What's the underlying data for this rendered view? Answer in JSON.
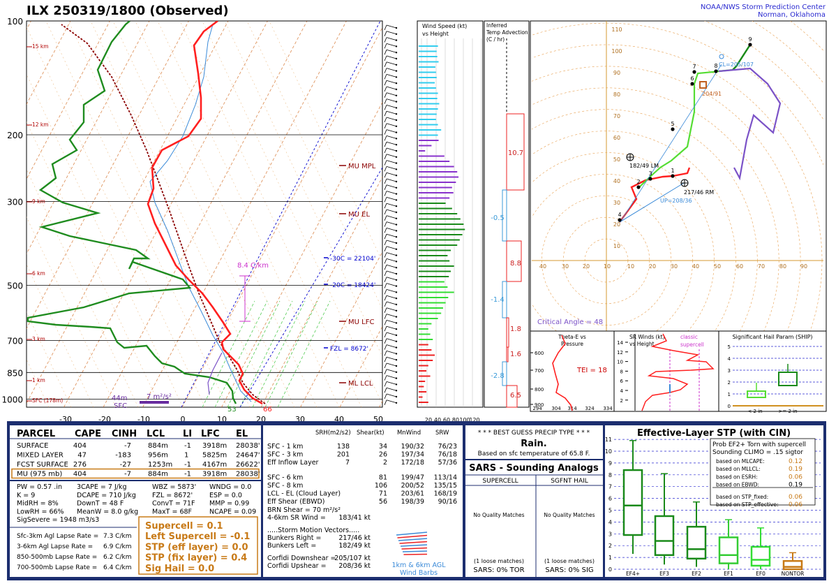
{
  "header": {
    "station_title": "ILX   250319/1800  (Observed)",
    "center_line1": "NOAA/NWS Storm Prediction Center",
    "center_line2": "Norman, Oklahoma"
  },
  "colors": {
    "temp": "#ff2020",
    "dewpoint": "#1f8c1f",
    "parcel": "#8b0000",
    "isotherm": "#d2691e",
    "blue": "#0000cd",
    "navy": "#1c2e6f",
    "violet": "#7b52c7",
    "magenta": "#cc33cc",
    "orange": "#c87a17"
  },
  "chart_data": [
    {
      "type": "line",
      "name": "skewt",
      "pressure_levels": [
        "100",
        "200",
        "300",
        "500",
        "700",
        "850",
        "1000"
      ],
      "x_ticks": [
        "-30",
        "-20",
        "-10",
        "0",
        "10",
        "20",
        "30",
        "40",
        "50"
      ],
      "height_labels": [
        "15 km",
        "12 km",
        "9 km",
        "6 km",
        "3 km",
        "1 km",
        "SFC (178m)"
      ],
      "temperature": [
        [
          1000,
          18
        ],
        [
          975,
          15
        ],
        [
          950,
          13
        ],
        [
          925,
          12
        ],
        [
          900,
          11.5
        ],
        [
          850,
          12
        ],
        [
          800,
          8
        ],
        [
          750,
          4
        ],
        [
          700,
          1
        ],
        [
          650,
          -3
        ],
        [
          600,
          -7
        ],
        [
          550,
          -12
        ],
        [
          500,
          -17
        ],
        [
          450,
          -23
        ],
        [
          400,
          -30
        ],
        [
          350,
          -37
        ],
        [
          300,
          -45
        ],
        [
          250,
          -52
        ],
        [
          200,
          -56
        ],
        [
          150,
          -58
        ],
        [
          100,
          -64
        ]
      ],
      "dewpoint": [
        [
          1000,
          13
        ],
        [
          975,
          11
        ],
        [
          950,
          9
        ],
        [
          925,
          7
        ],
        [
          900,
          3
        ],
        [
          850,
          -2
        ],
        [
          800,
          -15
        ],
        [
          750,
          -18
        ],
        [
          700,
          -22
        ],
        [
          650,
          -30
        ],
        [
          600,
          -38
        ],
        [
          550,
          -42
        ],
        [
          500,
          -35
        ],
        [
          450,
          -45
        ],
        [
          400,
          -55
        ],
        [
          350,
          -60
        ],
        [
          300,
          -65
        ],
        [
          250,
          -70
        ],
        [
          200,
          -75
        ],
        [
          150,
          -78
        ],
        [
          100,
          -85
        ]
      ],
      "annotations": {
        "mu_mpl": "MU MPL",
        "mu_el": "MU EL",
        "mu_lfc": "MU LFC",
        "ml_lcl": "ML LCL",
        "m30c": "-30C = 22104'",
        "m20c": "-20C = 18424'",
        "fzl": "FZL = 8672'",
        "lapse": "8.4 C/km",
        "sfc_temp": "66",
        "sfc_dew": "53",
        "srh_depth": "44m",
        "sfc": "SFC",
        "scale": "7 m²/s²"
      }
    },
    {
      "type": "bar",
      "name": "wind_speed_height",
      "title": "Wind Speed (kt)\nvs Height",
      "ticks": [
        "20",
        "40",
        "60",
        "80",
        "100",
        "120"
      ]
    },
    {
      "type": "bar",
      "name": "temp_advection",
      "title": "Inferred\nTemp Advection\n(C / hr)",
      "values": [
        "10.7",
        "-0.5",
        "8.8",
        "-1.4",
        "1.8",
        "1.6",
        "-2.8",
        "6.5"
      ]
    },
    {
      "type": "line",
      "name": "hodograph",
      "y_ticks": [
        "110",
        "100",
        "90",
        "80",
        "70",
        "60",
        "50",
        "40",
        "30",
        "20",
        "10"
      ],
      "x_ticks": [
        "40",
        "30",
        "20",
        "10",
        "10",
        "20",
        "30",
        "40",
        "50",
        "60",
        "70",
        "80",
        "90"
      ],
      "labels": {
        "cl": "CL=205/107",
        "sm": "204/91",
        "lm": "182/49 LM",
        "rm": "217/46 RM",
        "up": "UP=208/36",
        "critical_angle": "Critical Angle = 48"
      },
      "points": [
        "1",
        "2",
        "3",
        "4",
        "5",
        "6",
        "7",
        "8",
        "9"
      ]
    },
    {
      "type": "line",
      "name": "theta_e",
      "title": "Theta-E vs\nPressure",
      "y_ticks": [
        "600",
        "700",
        "800",
        "900"
      ],
      "x_ticks": [
        "294",
        "304",
        "314",
        "324",
        "334"
      ],
      "tei": "TEI = 18"
    },
    {
      "type": "line",
      "name": "sr_winds",
      "title": "SR Winds (kt)\nvs Height",
      "y_ticks": [
        "14",
        "12",
        "10",
        "8",
        "6",
        "4",
        "2"
      ],
      "classic": "classic\nsupercell"
    },
    {
      "type": "bar",
      "name": "ship",
      "title": "Significant Hail Param (SHIP)",
      "y_ticks": [
        "5",
        "4",
        "3",
        "2",
        "1",
        "0"
      ],
      "x_labels": [
        "< 2 in",
        ">= 2 in"
      ]
    }
  ],
  "parcel_table": {
    "headers": [
      "PARCEL",
      "CAPE",
      "CINH",
      "LCL",
      "LI",
      "LFC",
      "EL"
    ],
    "rows": [
      [
        "SURFACE",
        "404",
        "-7",
        "884m",
        "-1",
        "3918m",
        "28038'"
      ],
      [
        "MIXED LAYER",
        "47",
        "-183",
        "956m",
        "1",
        "5825m",
        "24647'"
      ],
      [
        "FCST SURFACE",
        "276",
        "-27",
        "1253m",
        "-1",
        "4167m",
        "26622'"
      ],
      [
        "MU   (975 mb)",
        "404",
        "-7",
        "884m",
        "-1",
        "3918m",
        "28038'"
      ]
    ]
  },
  "indices": {
    "col1": [
      "PW = 0.57 .in",
      "K = 9",
      "MidRH = 8%",
      "LowRH = 66%",
      "SigSevere = 1948 m3/s3"
    ],
    "col2": [
      "3CAPE = 7 J/kg",
      "DCAPE = 710 J/kg",
      "DownT = 48 F",
      "MeanW = 8.0 g/kg"
    ],
    "col3": [
      "WBZ = 5873'",
      "FZL = 8672'",
      "ConvT = 71F",
      "MaxT = 68F"
    ],
    "col4": [
      "WNDG = 0.0",
      "ESP = 0.0",
      "MMP = 0.99",
      "NCAPE = 0.09"
    ]
  },
  "lapse_rates": [
    [
      "Sfc-3km Agl Lapse Rate =",
      "7.3 C/km"
    ],
    [
      "3-6km Agl Lapse Rate =",
      "6.9 C/km"
    ],
    [
      "850-500mb Lapse Rate =",
      "6.2 C/km"
    ],
    [
      "700-500mb Lapse Rate =",
      "6.4 C/km"
    ]
  ],
  "composite": [
    "Supercell = 0.1",
    "Left Supercell = -0.1",
    "STP (eff layer) = 0.0",
    "STP (fix layer) = 0.4",
    "Sig Hail = 0.0"
  ],
  "kinematics": {
    "headers": [
      "SRH(m2/s2)",
      "Shear(kt)",
      "MnWind",
      "SRW"
    ],
    "rows": [
      [
        "SFC - 1 km",
        "138",
        "34",
        "190/32",
        "76/23"
      ],
      [
        "SFC - 3 km",
        "201",
        "26",
        "197/34",
        "76/18"
      ],
      [
        "Eff Inflow Layer",
        "7",
        "2",
        "172/18",
        "57/36"
      ],
      [
        "SFC - 6 km",
        "",
        "81",
        "199/47",
        "113/14"
      ],
      [
        "SFC - 8 km",
        "",
        "106",
        "200/52",
        "135/15"
      ],
      [
        "LCL - EL (Cloud Layer)",
        "",
        "71",
        "203/61",
        "168/19"
      ],
      [
        "Eff Shear (EBWD)",
        "",
        "56",
        "198/39",
        "90/16"
      ]
    ],
    "brn_shear": "BRN Shear =  70 m²/s²",
    "sr_wind": "4-6km SR Wind =",
    "sr_wind_val": "183/41 kt",
    "storm_motion": ".....Storm Motion Vectors.....",
    "bunkers_right": "Bunkers Right =",
    "bunkers_right_val": "217/46 kt",
    "bunkers_left": "Bunkers Left =",
    "bunkers_left_val": "182/49 kt",
    "corfidi_down": "Corfidi Downshear =",
    "corfidi_down_val": "205/107 kt",
    "corfidi_up": "Corfidi Upshear =",
    "corfidi_up_val": "208/36 kt",
    "wind_barbs": "1km & 6km AGL\nWind Barbs"
  },
  "precip": {
    "title": "* * * BEST GUESS PRECIP TYPE * * *",
    "type": "Rain.",
    "basis": "Based on sfc temperature of 65.8 F."
  },
  "sars": {
    "title": "SARS - Sounding Analogs",
    "supercell": "SUPERCELL",
    "sgfnt_hail": "SGFNT HAIL",
    "no_match_1": "No Quality Matches",
    "no_match_2": "No Quality Matches",
    "loose_1": "(1 loose matches)",
    "loose_2": "(1 loose matches)",
    "tor": "SARS:  0% TOR",
    "sig": "SARS:  0% SIG"
  },
  "stp": {
    "title": "Effective-Layer STP (with CIN)",
    "prob_line1": "Prob EF2+ Torn with supercell",
    "prob_line2": "Sounding CLIMO = .15 sigtor",
    "based": [
      [
        "based on MLCAPE:",
        "0.12"
      ],
      [
        "based on MLLCL:",
        "0.19"
      ],
      [
        "based on ESRH:",
        "0.06"
      ],
      [
        "based on EBWD:",
        "0.19"
      ],
      [
        "based on STP_fixed:",
        "0.06"
      ],
      [
        "based on STP_effective:",
        "0.06"
      ]
    ],
    "y_ticks": [
      "11",
      "10",
      "9",
      "8",
      "7",
      "6",
      "5",
      "4",
      "3",
      "2",
      "1",
      "0"
    ],
    "categories": [
      "EF4+",
      "EF3",
      "EF2",
      "EF1",
      "EF0",
      "NONTOR"
    ],
    "boxes": [
      {
        "lo": 1.3,
        "q1": 2.9,
        "med": 5.4,
        "q3": 8.4,
        "hi": 10.9
      },
      {
        "lo": 0.4,
        "q1": 1.2,
        "med": 2.4,
        "q3": 4.5,
        "hi": 8.1
      },
      {
        "lo": 0.2,
        "q1": 0.9,
        "med": 1.7,
        "q3": 3.6,
        "hi": 5.7
      },
      {
        "lo": 0.0,
        "q1": 0.5,
        "med": 1.2,
        "q3": 2.7,
        "hi": 4.2
      },
      {
        "lo": 0.0,
        "q1": 0.3,
        "med": 0.8,
        "q3": 1.9,
        "hi": 3.5
      },
      {
        "lo": 0.0,
        "q1": 0.0,
        "med": 0.2,
        "q3": 0.7,
        "hi": 1.4
      }
    ]
  }
}
